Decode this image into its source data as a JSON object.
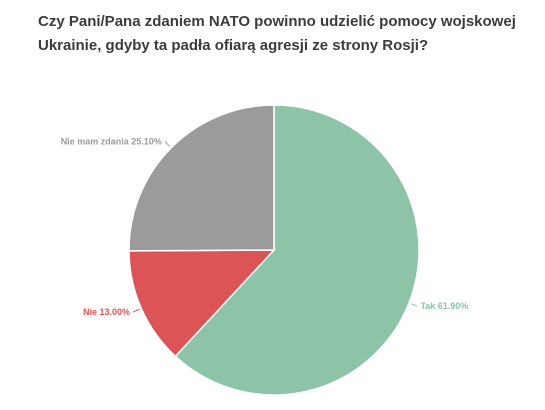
{
  "chart_data": {
    "type": "pie",
    "title_lines": [
      "Czy Pani/Pana zdaniem NATO powinno udzielić pomocy wojskowej",
      "Ukrainie, gdyby ta padła ofiarą agresji ze strony Rosji?"
    ],
    "slices": [
      {
        "label": "Tak",
        "value": 61.9,
        "display": "Tak 61.90%",
        "color": "#8dc3a7"
      },
      {
        "label": "Nie",
        "value": 13.0,
        "display": "Nie 13.00%",
        "color": "#dd5457"
      },
      {
        "label": "Nie mam zdania",
        "value": 25.1,
        "display": "Nie mam zdania 25.10%",
        "color": "#9b9b9b"
      }
    ],
    "start_angle_deg": 0,
    "direction": "clockwise"
  }
}
